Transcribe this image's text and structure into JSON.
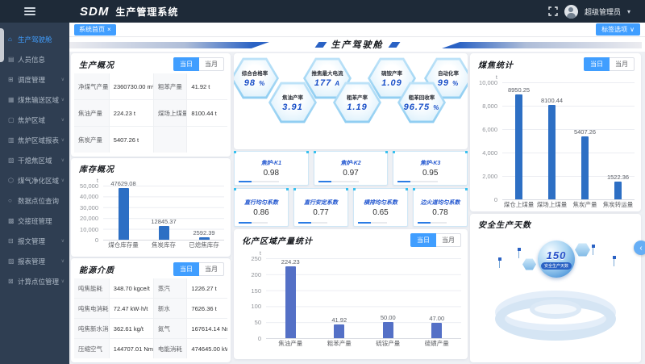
{
  "topbar": {
    "logo": "SDM",
    "title": "生产管理系统",
    "user_name": "超级管理员"
  },
  "tabbar": {
    "active_tab": "系统首页",
    "close": "×",
    "tag_options": "标签选项"
  },
  "toggles": {
    "daily": "当日",
    "monthly": "当月"
  },
  "banner": {
    "title": "生产驾驶舱"
  },
  "sidebar": {
    "items": [
      {
        "label": "生产驾驶舱",
        "icon": "home-icon",
        "active": true,
        "expandable": false
      },
      {
        "label": "人员信息",
        "icon": "users-icon",
        "active": false,
        "expandable": false
      },
      {
        "label": "调度管理",
        "icon": "schedule-icon",
        "active": false,
        "expandable": true
      },
      {
        "label": "煤焦输送区域",
        "icon": "transport-icon",
        "active": false,
        "expandable": true
      },
      {
        "label": "焦炉区域",
        "icon": "oven-icon",
        "active": false,
        "expandable": true
      },
      {
        "label": "焦炉区域报表",
        "icon": "oven-report-icon",
        "active": false,
        "expandable": true
      },
      {
        "label": "干熄焦区域",
        "icon": "cdq-icon",
        "active": false,
        "expandable": true
      },
      {
        "label": "煤气净化区域",
        "icon": "gas-purify-icon",
        "active": false,
        "expandable": true
      },
      {
        "label": "数据点位查询",
        "icon": "search-icon",
        "active": false,
        "expandable": false
      },
      {
        "label": "交接班管理",
        "icon": "shift-icon",
        "active": false,
        "expandable": false
      },
      {
        "label": "报文管理",
        "icon": "message-icon",
        "active": false,
        "expandable": true
      },
      {
        "label": "报表管理",
        "icon": "report-icon",
        "active": false,
        "expandable": true
      },
      {
        "label": "计算点位管理",
        "icon": "calc-points-icon",
        "active": false,
        "expandable": true
      }
    ]
  },
  "panels": {
    "production": {
      "title": "生产概况",
      "cells": [
        {
          "label": "净煤气产量",
          "value": "2360730.00 m³"
        },
        {
          "label": "粗苯产量",
          "value": "41.92 t"
        },
        {
          "label": "焦油产量",
          "value": "224.23 t"
        },
        {
          "label": "煤场上煤量",
          "value": "8100.44 t"
        },
        {
          "label": "焦炭产量",
          "value": "5407.26 t"
        },
        {
          "label": "",
          "value": ""
        }
      ]
    },
    "inventory": {
      "title": "库存概况"
    },
    "energy": {
      "title": "能源介质",
      "cells": [
        {
          "label": "吨焦能耗",
          "value": "348.70 kgce/t"
        },
        {
          "label": "蒸汽",
          "value": "1226.27 t"
        },
        {
          "label": "吨焦电消耗",
          "value": "72.47 kW·h/t"
        },
        {
          "label": "新水",
          "value": "7626.36 t"
        },
        {
          "label": "吨焦新水消耗",
          "value": "362.61 kg/t"
        },
        {
          "label": "氮气",
          "value": "167614.14 Nm³"
        },
        {
          "label": "压缩空气",
          "value": "144707.01 Nm³"
        },
        {
          "label": "电能消耗",
          "value": "474645.00 kW·h"
        }
      ]
    },
    "chemical": {
      "title": "化产区域产量统计"
    },
    "coal": {
      "title": "煤焦统计"
    },
    "safety": {
      "title": "安全生产天数",
      "days": "150",
      "badge_label": "安全生产天数"
    }
  },
  "hexagons": [
    {
      "label": "综合合格率",
      "value": "98",
      "unit": "%"
    },
    {
      "label": "推焦最大电流",
      "value": "177",
      "unit": "A"
    },
    {
      "label": "硫铵产率",
      "value": "1.09",
      "unit": ""
    },
    {
      "label": "自动化率",
      "value": "99",
      "unit": "%"
    },
    {
      "label": "焦油产率",
      "value": "3.91",
      "unit": ""
    },
    {
      "label": "粗苯产率",
      "value": "1.19",
      "unit": ""
    },
    {
      "label": "粗苯回收率",
      "value": "96.75",
      "unit": "%"
    }
  ],
  "oven_cards": [
    {
      "label": "焦炉-K1",
      "value": "0.98"
    },
    {
      "label": "焦炉-K2",
      "value": "0.97"
    },
    {
      "label": "焦炉-K3",
      "value": "0.95"
    }
  ],
  "coef_cards": [
    {
      "label": "直行均匀系数",
      "value": "0.86"
    },
    {
      "label": "直行安定系数",
      "value": "0.77"
    },
    {
      "label": "横排均匀系数",
      "value": "0.65"
    },
    {
      "label": "边火道均匀系数",
      "value": "0.78"
    }
  ],
  "chart_data": [
    {
      "id": "inventory",
      "type": "bar",
      "title": "库存概况",
      "unit": "t",
      "categories": [
        "煤仓库存量",
        "焦炭库存",
        "已熄焦库存"
      ],
      "values": [
        47629.08,
        12845.37,
        2592.39
      ],
      "labels": [
        "47629.08",
        "12845.37",
        "2592.39"
      ],
      "ylim": [
        0,
        50000
      ],
      "yticks": [
        0,
        10000,
        20000,
        30000,
        40000,
        50000
      ],
      "grid": true,
      "bar_color": "#2d6fc4"
    },
    {
      "id": "chemical",
      "type": "bar",
      "title": "化产区域产量统计",
      "unit": "t",
      "categories": [
        "焦油产量",
        "粗苯产量",
        "硫铵产量",
        "硫磺产量"
      ],
      "values": [
        224.23,
        41.92,
        50.0,
        47.0
      ],
      "labels": [
        "224.23",
        "41.92",
        "50.00",
        "47.00"
      ],
      "ylim": [
        0,
        250
      ],
      "yticks": [
        0,
        50,
        100,
        150,
        200,
        250
      ],
      "grid": true,
      "bar_color": "#5470c6"
    },
    {
      "id": "coal",
      "type": "bar",
      "title": "煤焦统计",
      "unit": "t",
      "categories": [
        "煤仓上煤量",
        "煤场上煤量",
        "焦炭产量",
        "焦炭转运量"
      ],
      "values": [
        8950.25,
        8100.44,
        5407.26,
        1522.36
      ],
      "labels": [
        "8950.25",
        "8100.44",
        "5407.26",
        "1522.36"
      ],
      "ylim": [
        0,
        10000
      ],
      "yticks": [
        0,
        2000,
        4000,
        6000,
        8000,
        10000
      ],
      "grid": true,
      "bar_color": "#2d6fc4"
    }
  ],
  "colors": {
    "accent": "#409eff",
    "banner_blue": "#2a62c4",
    "hex_value": "#1b50c8"
  }
}
